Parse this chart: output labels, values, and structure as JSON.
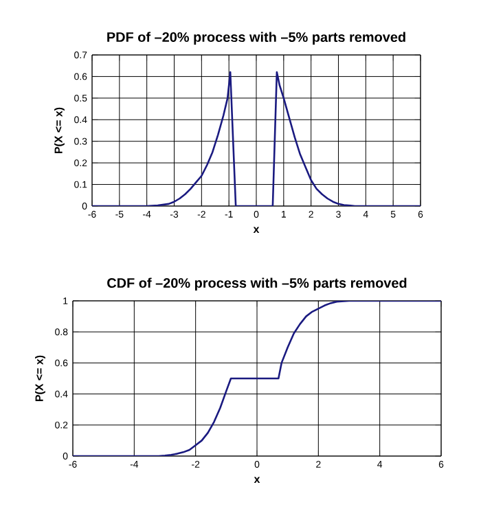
{
  "chart_data": [
    {
      "type": "line",
      "title": "PDF of –20% process with –5% parts removed",
      "xlabel": "x",
      "ylabel": "P(X <= x)",
      "xlim": [
        -6,
        6
      ],
      "ylim": [
        0,
        0.7
      ],
      "xticks": [
        -6,
        -5,
        -4,
        -3,
        -2,
        -1,
        0,
        1,
        2,
        3,
        4,
        5,
        6
      ],
      "yticks": [
        0,
        0.1,
        0.2,
        0.3,
        0.4,
        0.5,
        0.6,
        0.7
      ],
      "grid": true,
      "marker": "none",
      "line_style": "solid",
      "x": [
        -6,
        -5,
        -4,
        -3.6,
        -3.2,
        -3,
        -2.8,
        -2.6,
        -2.4,
        -2.2,
        -2,
        -1.8,
        -1.6,
        -1.4,
        -1.2,
        -1.05,
        -0.95,
        -0.75,
        0,
        0.6,
        0.75,
        0.85,
        1,
        1.2,
        1.4,
        1.6,
        1.8,
        2,
        2.2,
        2.4,
        2.6,
        2.8,
        3,
        3.2,
        3.6,
        4,
        5,
        6
      ],
      "series": [
        {
          "color": "#1a1a80",
          "values": [
            0,
            0,
            0,
            0.003,
            0.01,
            0.02,
            0.035,
            0.055,
            0.08,
            0.11,
            0.14,
            0.19,
            0.25,
            0.33,
            0.42,
            0.5,
            0.62,
            0,
            0,
            0,
            0.62,
            0.56,
            0.5,
            0.41,
            0.32,
            0.24,
            0.18,
            0.12,
            0.08,
            0.055,
            0.035,
            0.02,
            0.01,
            0.005,
            0,
            0,
            0,
            0
          ]
        }
      ]
    },
    {
      "type": "line",
      "title": "CDF of –20% process with –5% parts removed",
      "xlabel": "x",
      "ylabel": "P(X <= x)",
      "xlim": [
        -6,
        6
      ],
      "ylim": [
        0,
        1
      ],
      "xticks": [
        -6,
        -4,
        -2,
        0,
        2,
        4,
        6
      ],
      "yticks": [
        0,
        0.2,
        0.4,
        0.6,
        0.8,
        1
      ],
      "grid": true,
      "marker": "none",
      "line_style": "solid",
      "x": [
        -6,
        -4,
        -3.2,
        -3,
        -2.8,
        -2.6,
        -2.4,
        -2.2,
        -2,
        -1.8,
        -1.6,
        -1.4,
        -1.2,
        -1,
        -0.85,
        0,
        0.7,
        0.8,
        1,
        1.2,
        1.4,
        1.6,
        1.8,
        2,
        2.2,
        2.4,
        2.6,
        3,
        4,
        6
      ],
      "series": [
        {
          "color": "#1a1a80",
          "values": [
            0,
            0,
            0,
            0.003,
            0.008,
            0.015,
            0.025,
            0.04,
            0.07,
            0.1,
            0.15,
            0.22,
            0.31,
            0.42,
            0.5,
            0.5,
            0.5,
            0.6,
            0.7,
            0.79,
            0.85,
            0.9,
            0.93,
            0.95,
            0.97,
            0.985,
            0.995,
            1,
            1,
            1
          ]
        }
      ]
    }
  ]
}
